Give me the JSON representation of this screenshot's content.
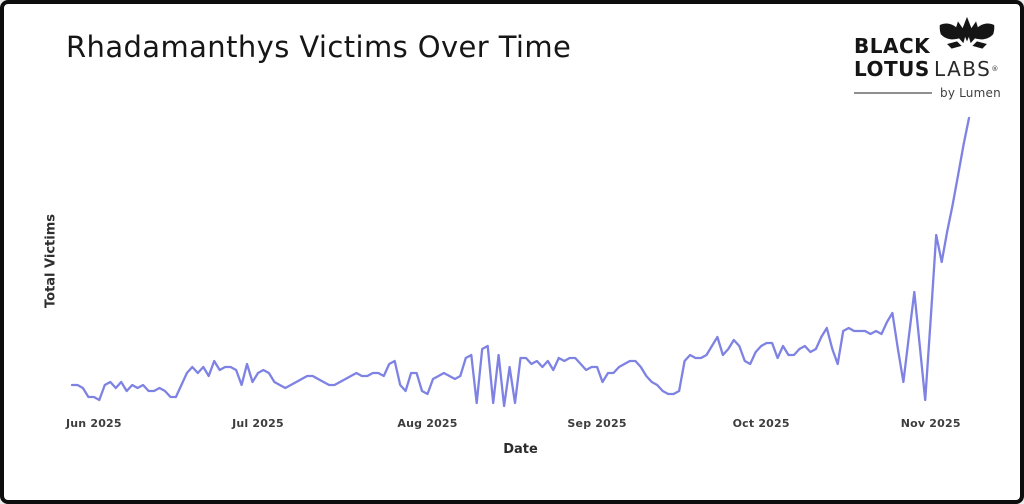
{
  "logo": {
    "line1_bold": "BLACK",
    "line2_bold": "LOTUS",
    "line2_light": "LABS",
    "reg_mark": "®",
    "tagline": "by Lumen"
  },
  "chart_data": {
    "type": "line",
    "title": "Rhadamanthys Victims Over Time",
    "xlabel": "Date",
    "ylabel": "Total Victims",
    "start_date": "2025-05-28",
    "frequency": "daily",
    "x_ticks": [
      {
        "label": "Jun 2025",
        "day_index": 4
      },
      {
        "label": "Jul 2025",
        "day_index": 34
      },
      {
        "label": "Aug 2025",
        "day_index": 65
      },
      {
        "label": "Sep 2025",
        "day_index": 96
      },
      {
        "label": "Oct 2025",
        "day_index": 126
      },
      {
        "label": "Nov 2025",
        "day_index": 157
      }
    ],
    "y_tick_labels_visible": false,
    "note": "No numeric y-axis ticks shown; values are relative estimates of plot height (0-100)",
    "ylim": [
      0,
      105
    ],
    "grid": false,
    "legend": false,
    "line_color": "#7e82e3",
    "values": [
      8,
      8,
      7,
      4,
      4,
      3,
      8,
      9,
      7,
      9,
      6,
      8,
      7,
      8,
      6,
      6,
      7,
      6,
      4,
      4,
      8,
      12,
      14,
      12,
      14,
      11,
      16,
      13,
      14,
      14,
      13,
      8,
      15,
      9,
      12,
      13,
      12,
      9,
      8,
      7,
      8,
      9,
      10,
      11,
      11,
      10,
      9,
      8,
      8,
      9,
      10,
      11,
      12,
      11,
      11,
      12,
      12,
      11,
      15,
      16,
      8,
      6,
      12,
      12,
      6,
      5,
      10,
      11,
      12,
      11,
      10,
      11,
      17,
      18,
      2,
      20,
      21,
      2,
      18,
      1,
      14,
      2,
      17,
      17,
      15,
      16,
      14,
      16,
      13,
      17,
      16,
      17,
      17,
      15,
      13,
      14,
      14,
      9,
      12,
      12,
      14,
      15,
      16,
      16,
      14,
      11,
      9,
      8,
      6,
      5,
      5,
      6,
      16,
      18,
      17,
      17,
      18,
      21,
      24,
      18,
      20,
      23,
      21,
      16,
      15,
      19,
      21,
      22,
      22,
      17,
      21,
      18,
      18,
      20,
      21,
      19,
      20,
      24,
      27,
      20,
      15,
      26,
      27,
      26,
      26,
      26,
      25,
      26,
      25,
      29,
      32,
      20,
      9,
      24,
      39,
      21,
      3,
      30,
      58,
      49,
      59,
      68,
      78,
      88,
      97
    ]
  }
}
